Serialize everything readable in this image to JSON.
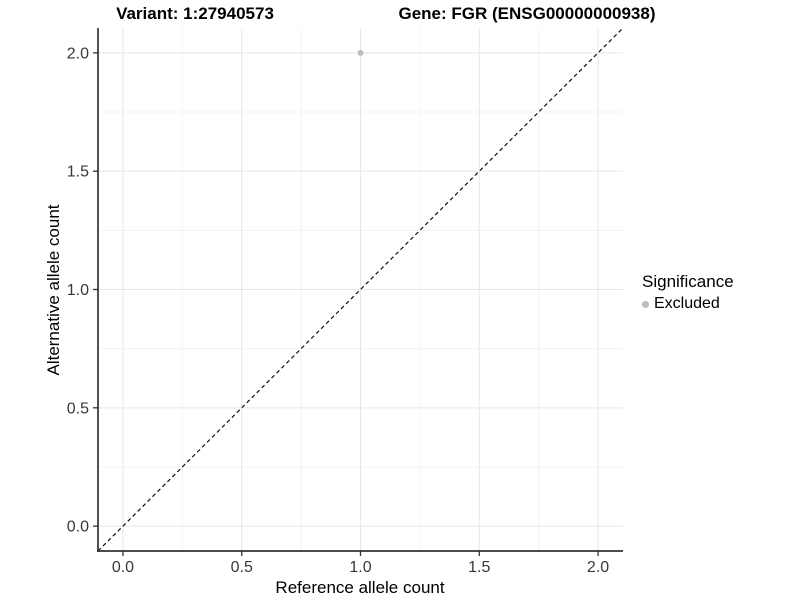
{
  "chart_data": {
    "type": "scatter",
    "titles": {
      "left": "Variant: 1:27940573",
      "right": "Gene: FGR (ENSG00000000938)"
    },
    "xlabel": "Reference allele count",
    "ylabel": "Alternative allele count",
    "xlim": [
      -0.105,
      2.105
    ],
    "ylim": [
      -0.105,
      2.105
    ],
    "x_ticks": [
      0,
      0.5,
      1,
      1.5,
      2
    ],
    "x_tick_labels": [
      "0.0",
      "0.5",
      "1.0",
      "1.5",
      "2.0"
    ],
    "y_ticks": [
      0,
      0.5,
      1,
      1.5,
      2
    ],
    "y_tick_labels": [
      "0.0",
      "0.5",
      "1.0",
      "1.5",
      "2.0"
    ],
    "minor_ticks": [
      0.25,
      0.75,
      1.25,
      1.75
    ],
    "grid": {
      "major": true,
      "minor": true
    },
    "series": [
      {
        "name": "Excluded",
        "color": "#bdbdbd",
        "marker": "circle",
        "points": [
          {
            "x": 1.0,
            "y": 2.0
          }
        ]
      }
    ],
    "reference_line": {
      "slope": 1,
      "intercept": 0,
      "style": "dashed",
      "color": "#111111"
    },
    "legend": {
      "title": "Significance",
      "position": "right",
      "entries": [
        {
          "label": "Excluded",
          "color": "#bdbdbd"
        }
      ]
    },
    "colors": {
      "background": "#ffffff",
      "axis": "#333333",
      "tick_text": "#383838",
      "grid_major": "#e7e7e7",
      "grid_minor": "#f3f3f3"
    }
  }
}
